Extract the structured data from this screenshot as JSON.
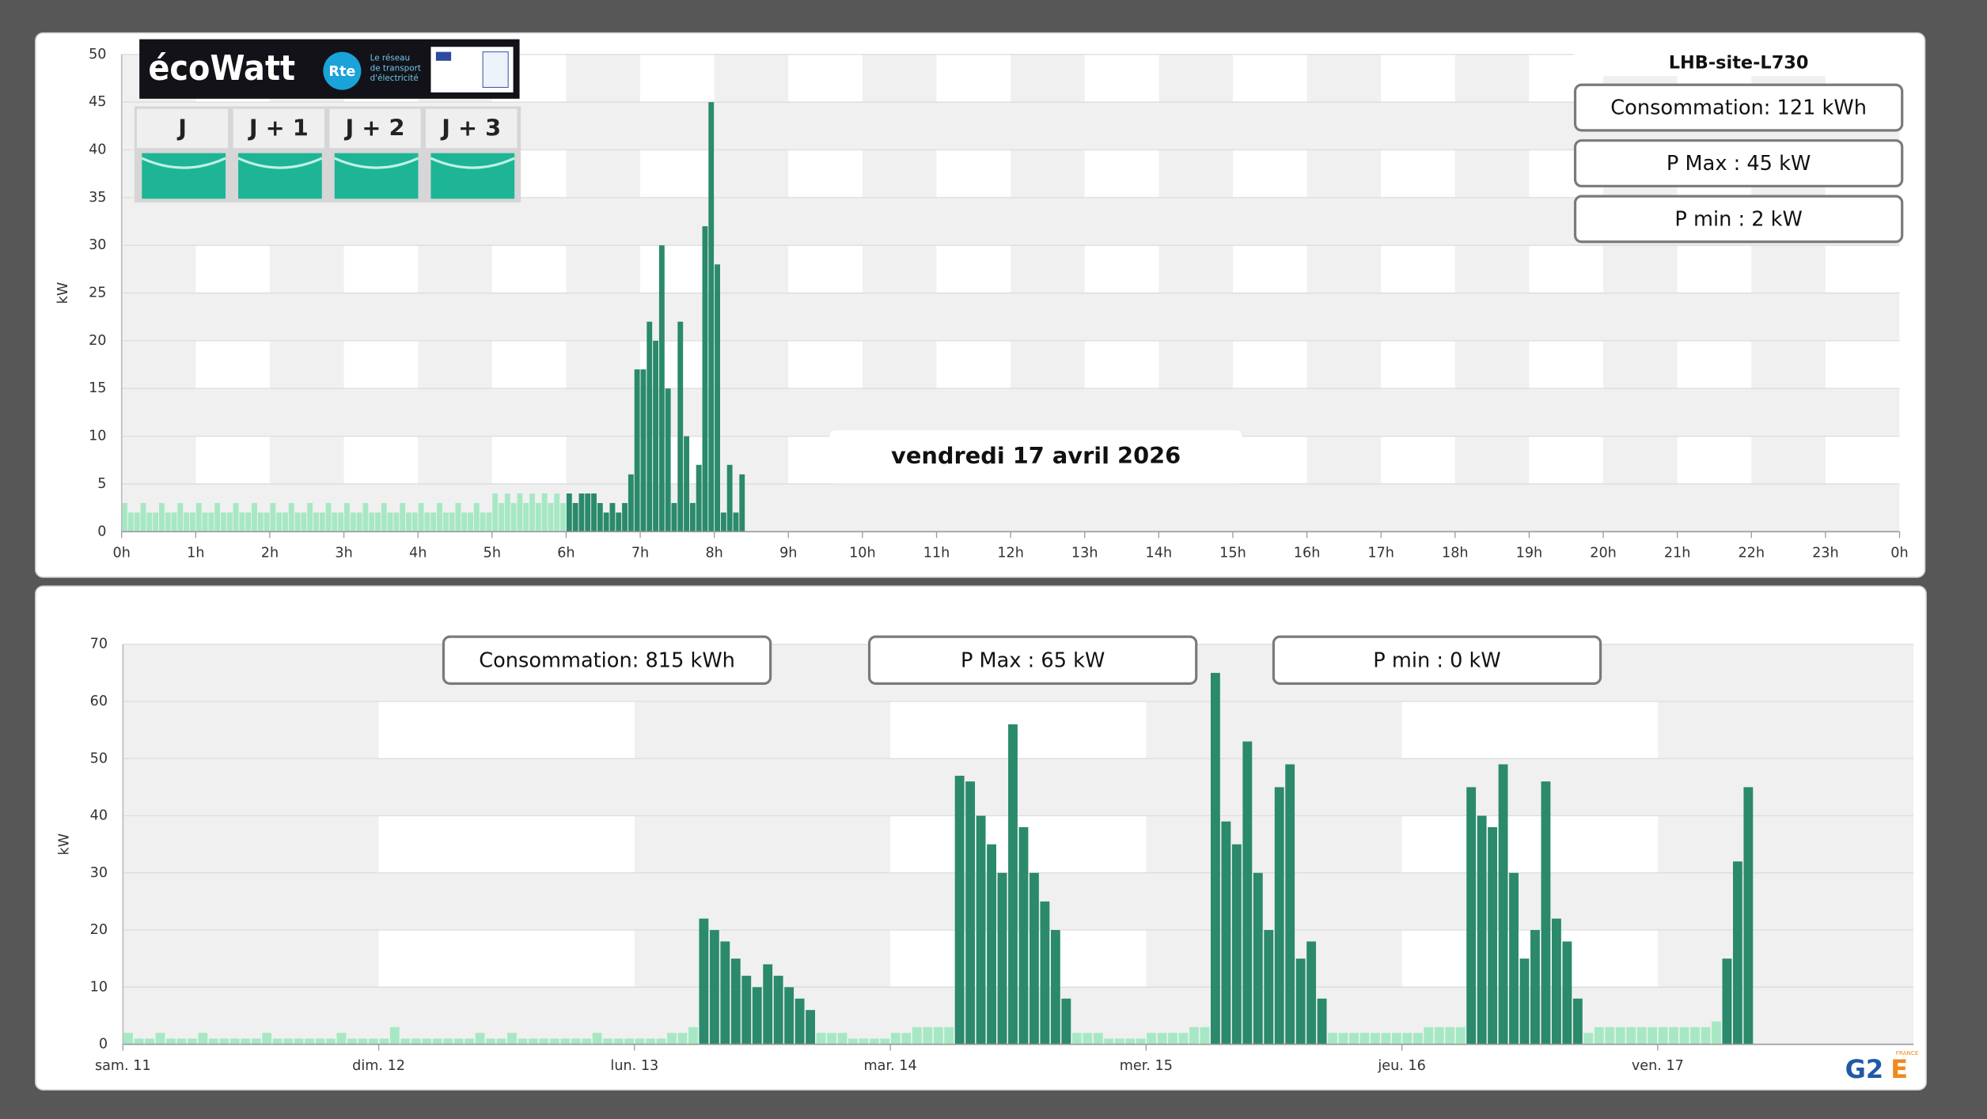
{
  "ecowatt": {
    "logo": "écoWatt",
    "rte": "Rte",
    "rte_caption": [
      "Le réseau",
      "de transport",
      "d'électricité"
    ],
    "days": [
      "J",
      "J + 1",
      "J + 2",
      "J + 3"
    ]
  },
  "logo": {
    "main": "G2",
    "accent": "E",
    "sub": "FRANCE"
  },
  "chart_data": [
    {
      "type": "bar",
      "title": "LHB-site-L730",
      "annotation": "vendredi 17 avril 2026",
      "stats": [
        "Consommation: 121 kWh",
        "P Max :  45 kW",
        "P min : 2 kW"
      ],
      "ylabel": "kW",
      "grid": true,
      "xlim": [
        0,
        1440
      ],
      "xticks": [
        {
          "value": 0,
          "label": "0h"
        },
        {
          "value": 60,
          "label": "1h"
        },
        {
          "value": 120,
          "label": "2h"
        },
        {
          "value": 180,
          "label": "3h"
        },
        {
          "value": 240,
          "label": "4h"
        },
        {
          "value": 300,
          "label": "5h"
        },
        {
          "value": 360,
          "label": "6h"
        },
        {
          "value": 420,
          "label": "7h"
        },
        {
          "value": 480,
          "label": "8h"
        },
        {
          "value": 540,
          "label": "9h"
        },
        {
          "value": 600,
          "label": "10h"
        },
        {
          "value": 660,
          "label": "11h"
        },
        {
          "value": 720,
          "label": "12h"
        },
        {
          "value": 780,
          "label": "13h"
        },
        {
          "value": 840,
          "label": "14h"
        },
        {
          "value": 900,
          "label": "15h"
        },
        {
          "value": 960,
          "label": "16h"
        },
        {
          "value": 1020,
          "label": "17h"
        },
        {
          "value": 1080,
          "label": "18h"
        },
        {
          "value": 1140,
          "label": "19h"
        },
        {
          "value": 1200,
          "label": "20h"
        },
        {
          "value": 1260,
          "label": "21h"
        },
        {
          "value": 1320,
          "label": "22h"
        },
        {
          "value": 1380,
          "label": "23h"
        },
        {
          "value": 1440,
          "label": "0h"
        }
      ],
      "ylim": [
        0,
        50
      ],
      "yticks": [
        0,
        5,
        10,
        15,
        20,
        25,
        30,
        35,
        40,
        45,
        50
      ],
      "series": [
        {
          "color": "#a6e8c4",
          "x": [
            0,
            5,
            10,
            15,
            20,
            25,
            30,
            35,
            40,
            45,
            50,
            55,
            60,
            65,
            70,
            75,
            80,
            85,
            90,
            95,
            100,
            105,
            110,
            115,
            120,
            125,
            130,
            135,
            140,
            145,
            150,
            155,
            160,
            165,
            170,
            175,
            180,
            185,
            190,
            195,
            200,
            205,
            210,
            215,
            220,
            225,
            230,
            235,
            240,
            245,
            250,
            255,
            260,
            265,
            270,
            275,
            280,
            285,
            290,
            295,
            300,
            305,
            310,
            315,
            320,
            325,
            330,
            335,
            340,
            345,
            350,
            355
          ],
          "values": [
            3,
            2,
            2,
            3,
            2,
            2,
            3,
            2,
            2,
            3,
            2,
            2,
            3,
            2,
            2,
            3,
            2,
            2,
            3,
            2,
            2,
            3,
            2,
            2,
            3,
            2,
            2,
            3,
            2,
            2,
            3,
            2,
            2,
            3,
            2,
            2,
            3,
            2,
            2,
            3,
            2,
            2,
            3,
            2,
            2,
            3,
            2,
            2,
            3,
            2,
            2,
            3,
            2,
            2,
            3,
            2,
            2,
            3,
            2,
            2,
            4,
            3,
            4,
            3,
            4,
            3,
            4,
            3,
            4,
            3,
            4,
            3
          ]
        },
        {
          "color": "#2a8a6b",
          "x": [
            360,
            365,
            370,
            375,
            380,
            385,
            390,
            395,
            400,
            405,
            410,
            415,
            420,
            425,
            430,
            435,
            440,
            445,
            450,
            455,
            460,
            465,
            470,
            475,
            480,
            485,
            490,
            495,
            500
          ],
          "values": [
            4,
            3,
            4,
            4,
            4,
            3,
            2,
            3,
            2,
            3,
            6,
            17,
            17,
            22,
            20,
            30,
            15,
            3,
            22,
            10,
            3,
            7,
            32,
            45,
            28,
            2,
            7,
            2,
            6
          ]
        }
      ]
    },
    {
      "type": "bar",
      "stats": [
        "Consommation: 815 kWh",
        "P Max :  65 kW",
        "P min : 0 kW"
      ],
      "ylabel": "kW",
      "grid": true,
      "xlim": [
        0,
        168
      ],
      "xticks": [
        {
          "value": 0,
          "label": "sam. 11"
        },
        {
          "value": 24,
          "label": "dim. 12"
        },
        {
          "value": 48,
          "label": "lun. 13"
        },
        {
          "value": 72,
          "label": "mar. 14"
        },
        {
          "value": 96,
          "label": "mer. 15"
        },
        {
          "value": 120,
          "label": "jeu. 16"
        },
        {
          "value": 144,
          "label": "ven. 17"
        }
      ],
      "ylim": [
        0,
        70
      ],
      "yticks": [
        0,
        10,
        20,
        30,
        40,
        50,
        60,
        70
      ],
      "x": [
        0,
        1,
        2,
        3,
        4,
        5,
        6,
        7,
        8,
        9,
        10,
        11,
        12,
        13,
        14,
        15,
        16,
        17,
        18,
        19,
        20,
        21,
        22,
        23,
        24,
        25,
        26,
        27,
        28,
        29,
        30,
        31,
        32,
        33,
        34,
        35,
        36,
        37,
        38,
        39,
        40,
        41,
        42,
        43,
        44,
        45,
        46,
        47,
        48,
        49,
        50,
        51,
        52,
        53,
        54,
        55,
        56,
        57,
        58,
        59,
        60,
        61,
        62,
        63,
        64,
        65,
        66,
        67,
        68,
        69,
        70,
        71,
        72,
        73,
        74,
        75,
        76,
        77,
        78,
        79,
        80,
        81,
        82,
        83,
        84,
        85,
        86,
        87,
        88,
        89,
        90,
        91,
        92,
        93,
        94,
        95,
        96,
        97,
        98,
        99,
        100,
        101,
        102,
        103,
        104,
        105,
        106,
        107,
        108,
        109,
        110,
        111,
        112,
        113,
        114,
        115,
        116,
        117,
        118,
        119,
        120,
        121,
        122,
        123,
        124,
        125,
        126,
        127,
        128,
        129,
        130,
        131,
        132,
        133,
        134,
        135,
        136,
        137,
        138,
        139,
        140,
        141,
        142,
        143,
        144,
        145,
        146,
        147,
        148,
        149,
        150,
        151,
        152
      ],
      "series": [
        {
          "color": "#a6e8c4",
          "values": [
            2,
            1,
            1,
            2,
            1,
            1,
            1,
            2,
            1,
            1,
            1,
            1,
            1,
            2,
            1,
            1,
            1,
            1,
            1,
            1,
            2,
            1,
            1,
            1,
            1,
            3,
            1,
            1,
            1,
            1,
            1,
            1,
            1,
            2,
            1,
            1,
            2,
            1,
            1,
            1,
            1,
            1,
            1,
            1,
            2,
            1,
            1,
            1,
            1,
            1,
            1,
            2,
            2,
            3,
            null,
            null,
            null,
            null,
            null,
            null,
            null,
            null,
            null,
            null,
            null,
            2,
            2,
            2,
            1,
            1,
            1,
            1,
            2,
            2,
            3,
            3,
            3,
            3,
            null,
            null,
            null,
            null,
            null,
            null,
            null,
            null,
            null,
            null,
            null,
            2,
            2,
            2,
            1,
            1,
            1,
            1,
            2,
            2,
            2,
            2,
            3,
            3,
            null,
            null,
            null,
            null,
            null,
            null,
            null,
            null,
            null,
            null,
            null,
            2,
            2,
            2,
            2,
            2,
            2,
            2,
            2,
            2,
            3,
            3,
            3,
            3,
            null,
            null,
            null,
            null,
            null,
            null,
            null,
            null,
            null,
            null,
            null,
            2,
            3,
            3,
            3,
            3,
            3,
            3,
            3,
            3,
            3,
            3,
            3,
            4,
            null,
            null,
            null
          ]
        },
        {
          "color": "#2a8a6b",
          "values": [
            null,
            null,
            null,
            null,
            null,
            null,
            null,
            null,
            null,
            null,
            null,
            null,
            null,
            null,
            null,
            null,
            null,
            null,
            null,
            null,
            null,
            null,
            null,
            null,
            null,
            null,
            null,
            null,
            null,
            null,
            null,
            null,
            null,
            null,
            null,
            null,
            null,
            null,
            null,
            null,
            null,
            null,
            null,
            null,
            null,
            null,
            null,
            null,
            null,
            null,
            null,
            null,
            null,
            null,
            22,
            20,
            18,
            15,
            12,
            10,
            14,
            12,
            10,
            8,
            6,
            null,
            null,
            null,
            null,
            null,
            null,
            null,
            null,
            null,
            null,
            null,
            null,
            null,
            47,
            46,
            40,
            35,
            30,
            56,
            38,
            30,
            25,
            20,
            8,
            null,
            null,
            null,
            null,
            null,
            null,
            null,
            null,
            null,
            null,
            null,
            null,
            null,
            65,
            39,
            35,
            53,
            30,
            20,
            45,
            49,
            15,
            18,
            8,
            null,
            null,
            null,
            null,
            null,
            null,
            null,
            null,
            null,
            null,
            null,
            null,
            null,
            45,
            40,
            38,
            49,
            30,
            15,
            20,
            46,
            22,
            18,
            8,
            null,
            null,
            null,
            null,
            null,
            null,
            null,
            null,
            null,
            null,
            null,
            null,
            null,
            15,
            32,
            45
          ]
        }
      ]
    }
  ]
}
